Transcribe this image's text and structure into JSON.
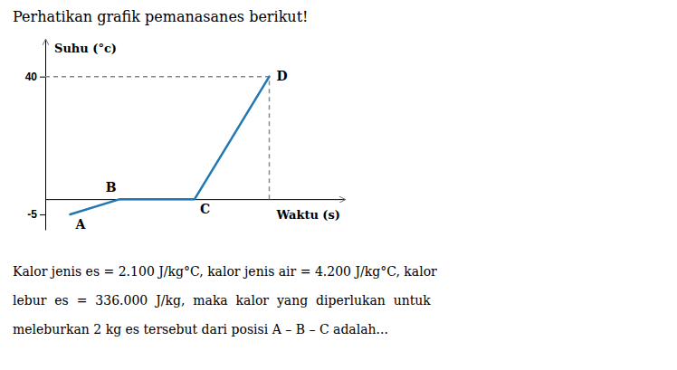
{
  "chart_data": {
    "type": "line",
    "title": "Perhatikan grafik pemanasanes berikut!",
    "xlabel": "Waktu (s)",
    "ylabel": "Suhu (°c)",
    "x": [
      1,
      3,
      6,
      9
    ],
    "values": [
      -5,
      0,
      0,
      40
    ],
    "point_labels": [
      "A",
      "B",
      "C",
      "D"
    ],
    "xlim": [
      0,
      12
    ],
    "ylim": [
      -10,
      52
    ],
    "xticks": [],
    "yticks": [
      -5,
      40
    ],
    "tick_labels": "y",
    "grid": false,
    "annotations": [
      "Kalor jenis es = 2.100 J/kg°C, kalor jenis air = 4.200 J/kg°C, kalor",
      "lebur  es  =  336.000  J/kg,  maka  kalor  yang  diperlukan  untuk",
      "meleburkan 2 kg es tersebut dari posisi A – B – C adalah..."
    ]
  }
}
